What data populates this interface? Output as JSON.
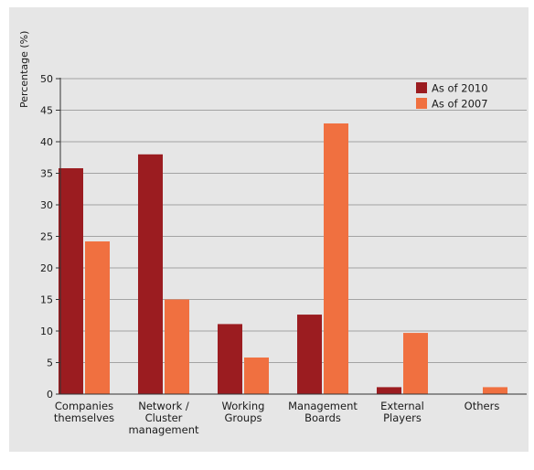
{
  "chart_data": {
    "type": "bar",
    "title": "",
    "xlabel": "",
    "ylabel": "Percentage (%)",
    "ylim": [
      0,
      50
    ],
    "yticks": [
      0,
      5,
      10,
      15,
      20,
      25,
      30,
      35,
      40,
      45,
      50
    ],
    "grid": true,
    "legend_position": "top-right",
    "categories": [
      [
        "Companies",
        "themselves"
      ],
      [
        "Network /",
        "Cluster",
        "management"
      ],
      [
        "Working",
        "Groups"
      ],
      [
        "Management",
        "Boards"
      ],
      [
        "External",
        "Players"
      ],
      [
        "Others"
      ]
    ],
    "series": [
      {
        "name": "As of 2010",
        "color": "#9b1c20",
        "values": [
          35.8,
          38.0,
          11.1,
          12.6,
          1.1,
          0
        ]
      },
      {
        "name": "As of 2007",
        "color": "#f07040",
        "values": [
          24.2,
          15.0,
          5.8,
          42.9,
          9.7,
          1.1
        ]
      }
    ]
  }
}
